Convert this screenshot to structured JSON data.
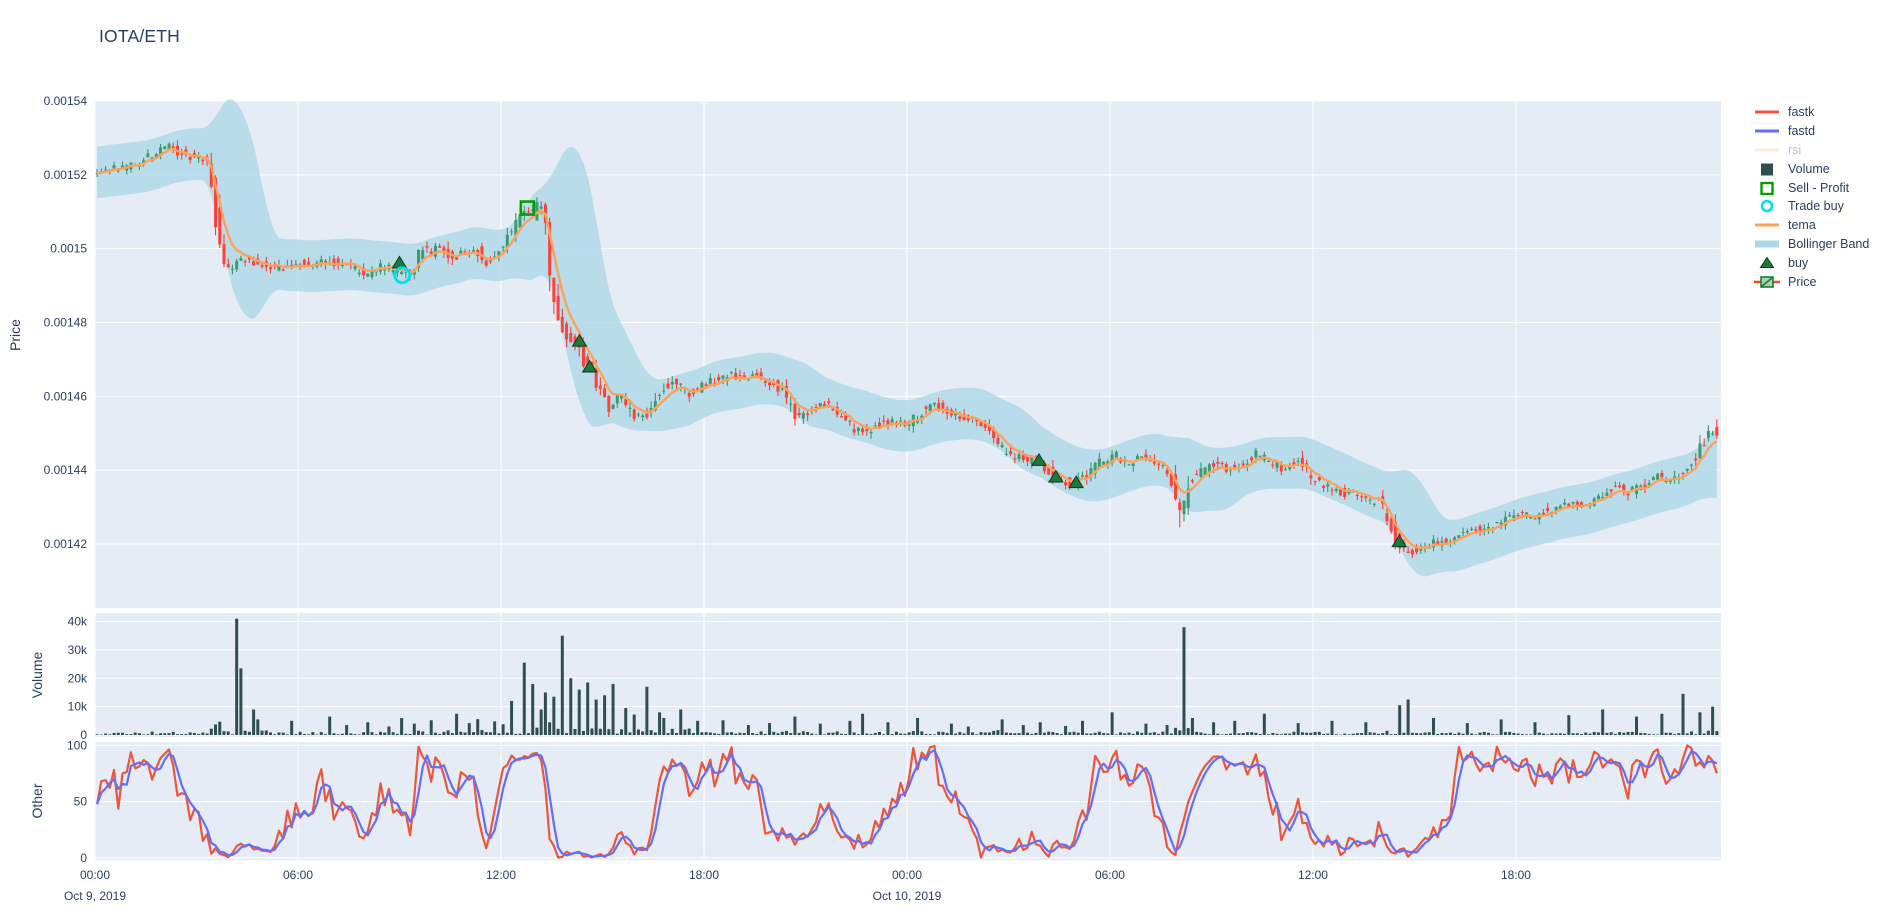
{
  "title": "IOTA/ETH",
  "colors": {
    "paper": "#ffffff",
    "plot_bg": "#e5ecf6",
    "grid": "#ffffff",
    "text": "#2a3f5f",
    "muted_text": "#b9c2d0",
    "candle_up": "#3D9970",
    "candle_down": "#FF4136",
    "bollinger": "#ADD8E6",
    "tema": "#FFA15A",
    "fastk": "#EF553B",
    "fastd": "#636EFA",
    "rsi": "#F6D9A8",
    "volume": "#2F4F4F",
    "buy": "#1B7A3B",
    "buy_edge": "#0A3A1C",
    "sell_profit": "#00A000",
    "trade_buy": "#00E0EC"
  },
  "legend": {
    "items": [
      {
        "label": "fastk",
        "glyph": "line",
        "color": "#EF553B",
        "muted": false
      },
      {
        "label": "fastd",
        "glyph": "line",
        "color": "#636EFA",
        "muted": false
      },
      {
        "label": "rsi",
        "glyph": "line",
        "color": "#F6D9A8",
        "muted": true
      },
      {
        "label": "Volume",
        "glyph": "square",
        "color": "#2F4F4F",
        "muted": false
      },
      {
        "label": "Sell - Profit",
        "glyph": "square-open",
        "color": "#00A000",
        "muted": false
      },
      {
        "label": "Trade buy",
        "glyph": "circle-open",
        "color": "#00E0EC",
        "muted": false
      },
      {
        "label": "tema",
        "glyph": "line",
        "color": "#FFA15A",
        "muted": false
      },
      {
        "label": "Bollinger Band",
        "glyph": "band",
        "color": "#ADD8E6",
        "muted": false
      },
      {
        "label": "buy",
        "glyph": "triangle",
        "color": "#1B7A3B",
        "muted": false
      },
      {
        "label": "Price",
        "glyph": "candle",
        "color": "#3D9970",
        "color2": "#FF4136",
        "muted": false
      }
    ]
  },
  "axes": {
    "x": {
      "ticks": [
        {
          "t": 0,
          "label": "00:00"
        },
        {
          "t": 6,
          "label": "06:00"
        },
        {
          "t": 12,
          "label": "12:00"
        },
        {
          "t": 18,
          "label": "18:00"
        },
        {
          "t": 24,
          "label": "00:00"
        },
        {
          "t": 30,
          "label": "06:00"
        },
        {
          "t": 36,
          "label": "12:00"
        },
        {
          "t": 42,
          "label": "18:00"
        }
      ],
      "dates": [
        {
          "t": 0,
          "label": "Oct 9, 2019"
        },
        {
          "t": 24,
          "label": "Oct 10, 2019"
        }
      ],
      "hours_span": 48.06
    },
    "price": {
      "title": "Price",
      "ticks": [
        {
          "v": 0.00154,
          "label": "0.00154"
        },
        {
          "v": 0.00152,
          "label": "0.00152"
        },
        {
          "v": 0.0015,
          "label": "0.0015"
        },
        {
          "v": 0.00148,
          "label": "0.00148"
        },
        {
          "v": 0.00146,
          "label": "0.00146"
        },
        {
          "v": 0.00144,
          "label": "0.00144"
        },
        {
          "v": 0.00142,
          "label": "0.00142"
        }
      ]
    },
    "volume": {
      "title": "Volume",
      "ticks": [
        {
          "v": 0,
          "label": "0"
        },
        {
          "v": 10000,
          "label": "10k"
        },
        {
          "v": 20000,
          "label": "20k"
        },
        {
          "v": 30000,
          "label": "30k"
        },
        {
          "v": 40000,
          "label": "40k"
        }
      ]
    },
    "other": {
      "title": "Other",
      "ticks": [
        {
          "v": 0,
          "label": "0"
        },
        {
          "v": 50,
          "label": "50"
        },
        {
          "v": 100,
          "label": "100"
        }
      ]
    }
  },
  "chart_data": {
    "type": "candlestick",
    "pair": "IOTA/ETH",
    "start": "Oct 9, 2019 00:00",
    "hours": 48.06,
    "candle_minutes": 7.5,
    "ylim_price": [
      0.0014025,
      0.00154
    ],
    "ylim_volume": [
      0,
      43000
    ],
    "ylim_other": [
      0,
      100
    ],
    "series_visible": [
      "fastk",
      "fastd",
      "Volume",
      "Sell - Profit",
      "Trade buy",
      "tema",
      "Bollinger Band",
      "buy",
      "Price"
    ],
    "series_hidden": [
      "rsi"
    ],
    "indicator_params": {
      "bollinger_window": 14,
      "bollinger_mult": 2.1,
      "bollinger_min_half_width": 7e-06,
      "stoch_window": 14,
      "fastd_smooth": 3,
      "tema_alpha": 0.3
    },
    "seed": 1337,
    "price_path_anchors": [
      [
        0,
        0.001521
      ],
      [
        0.5,
        0.0015215
      ],
      [
        1,
        0.0015222
      ],
      [
        1.5,
        0.0015238
      ],
      [
        1.9,
        0.0015262
      ],
      [
        2.2,
        0.001528
      ],
      [
        2.5,
        0.0015262
      ],
      [
        2.8,
        0.001525
      ],
      [
        3.1,
        0.0015252
      ],
      [
        3.35,
        0.0015245
      ],
      [
        3.55,
        0.001515
      ],
      [
        3.8,
        0.0014965
      ],
      [
        4.1,
        0.0014945
      ],
      [
        4.5,
        0.0014975
      ],
      [
        5,
        0.0014958
      ],
      [
        5.5,
        0.0014948
      ],
      [
        6,
        0.0014962
      ],
      [
        6.5,
        0.001495
      ],
      [
        7,
        0.0014968
      ],
      [
        7.5,
        0.0014952
      ],
      [
        8,
        0.001493
      ],
      [
        8.5,
        0.0014952
      ],
      [
        9,
        0.0014938
      ],
      [
        9.35,
        0.0014928
      ],
      [
        9.7,
        0.0015
      ],
      [
        10,
        0.0014988
      ],
      [
        10.3,
        0.0015012
      ],
      [
        10.6,
        0.0014975
      ],
      [
        11,
        0.0014992
      ],
      [
        11.3,
        0.0015002
      ],
      [
        11.6,
        0.0014962
      ],
      [
        12,
        0.0014988
      ],
      [
        12.3,
        0.0015042
      ],
      [
        12.6,
        0.0015085
      ],
      [
        12.8,
        0.0015112
      ],
      [
        13,
        0.0015092
      ],
      [
        13.2,
        0.001512
      ],
      [
        13.4,
        0.0015048
      ],
      [
        13.55,
        0.0014918
      ],
      [
        13.7,
        0.0014838
      ],
      [
        13.85,
        0.00148
      ],
      [
        14,
        0.0014768
      ],
      [
        14.3,
        0.0014742
      ],
      [
        14.5,
        0.0014695
      ],
      [
        14.7,
        0.0014682
      ],
      [
        15,
        0.0014605
      ],
      [
        15.3,
        0.0014565
      ],
      [
        15.6,
        0.0014602
      ],
      [
        15.9,
        0.0014555
      ],
      [
        16.2,
        0.0014542
      ],
      [
        16.5,
        0.0014565
      ],
      [
        16.8,
        0.0014622
      ],
      [
        17.2,
        0.0014642
      ],
      [
        17.6,
        0.0014605
      ],
      [
        18,
        0.0014632
      ],
      [
        18.4,
        0.0014645
      ],
      [
        18.8,
        0.0014658
      ],
      [
        19.2,
        0.0014652
      ],
      [
        19.6,
        0.0014662
      ],
      [
        20,
        0.0014642
      ],
      [
        20.4,
        0.0014612
      ],
      [
        20.8,
        0.0014535
      ],
      [
        21.2,
        0.0014562
      ],
      [
        21.6,
        0.0014582
      ],
      [
        22,
        0.0014562
      ],
      [
        22.4,
        0.0014515
      ],
      [
        22.8,
        0.0014502
      ],
      [
        23.2,
        0.0014522
      ],
      [
        23.6,
        0.0014532
      ],
      [
        24,
        0.0014522
      ],
      [
        24.4,
        0.0014552
      ],
      [
        24.8,
        0.0014582
      ],
      [
        25.2,
        0.0014562
      ],
      [
        25.6,
        0.0014542
      ],
      [
        26,
        0.0014532
      ],
      [
        26.4,
        0.0014522
      ],
      [
        26.7,
        0.0014472
      ],
      [
        27,
        0.0014442
      ],
      [
        27.4,
        0.0014432
      ],
      [
        27.9,
        0.0014422
      ],
      [
        28.2,
        0.0014402
      ],
      [
        28.45,
        0.0014382
      ],
      [
        28.7,
        0.0014372
      ],
      [
        29,
        0.0014362
      ],
      [
        29.4,
        0.0014392
      ],
      [
        29.8,
        0.0014422
      ],
      [
        30.2,
        0.0014442
      ],
      [
        30.6,
        0.0014422
      ],
      [
        31,
        0.0014442
      ],
      [
        31.4,
        0.0014422
      ],
      [
        31.8,
        0.0014392
      ],
      [
        32.05,
        0.001431
      ],
      [
        32.15,
        0.001424
      ],
      [
        32.3,
        0.001434
      ],
      [
        32.5,
        0.0014382
      ],
      [
        32.8,
        0.0014402
      ],
      [
        33.2,
        0.0014422
      ],
      [
        33.6,
        0.0014402
      ],
      [
        34,
        0.0014422
      ],
      [
        34.4,
        0.0014442
      ],
      [
        34.8,
        0.0014422
      ],
      [
        35.2,
        0.0014402
      ],
      [
        35.6,
        0.0014422
      ],
      [
        36,
        0.0014382
      ],
      [
        36.4,
        0.0014362
      ],
      [
        36.8,
        0.0014342
      ],
      [
        37.2,
        0.0014332
      ],
      [
        37.6,
        0.0014322
      ],
      [
        38,
        0.0014312
      ],
      [
        38.3,
        0.0014262
      ],
      [
        38.55,
        0.0014202
      ],
      [
        38.8,
        0.0014172
      ],
      [
        39.2,
        0.0014192
      ],
      [
        39.6,
        0.0014202
      ],
      [
        40,
        0.0014212
      ],
      [
        40.5,
        0.0014232
      ],
      [
        41,
        0.0014242
      ],
      [
        41.5,
        0.0014252
      ],
      [
        42,
        0.0014282
      ],
      [
        42.5,
        0.0014272
      ],
      [
        43,
        0.0014292
      ],
      [
        43.5,
        0.0014312
      ],
      [
        44,
        0.0014302
      ],
      [
        44.5,
        0.0014322
      ],
      [
        45,
        0.0014362
      ],
      [
        45.4,
        0.0014342
      ],
      [
        45.8,
        0.0014362
      ],
      [
        46.2,
        0.0014382
      ],
      [
        46.6,
        0.0014372
      ],
      [
        47,
        0.0014402
      ],
      [
        47.4,
        0.0014442
      ],
      [
        47.7,
        0.0014502
      ],
      [
        47.95,
        0.0014512
      ],
      [
        48.06,
        0.0014455
      ]
    ],
    "volume_spikes": [
      [
        4.07,
        41000
      ],
      [
        4.28,
        23500
      ],
      [
        4.6,
        9000
      ],
      [
        4.8,
        5500
      ],
      [
        5.7,
        5000
      ],
      [
        6.9,
        6500
      ],
      [
        7.4,
        3500
      ],
      [
        8,
        4500
      ],
      [
        8.6,
        3000
      ],
      [
        9,
        6000
      ],
      [
        9.4,
        4000
      ],
      [
        9.9,
        5200
      ],
      [
        10.6,
        7500
      ],
      [
        11,
        4200
      ],
      [
        11.3,
        5600
      ],
      [
        11.7,
        4800
      ],
      [
        12,
        3800
      ],
      [
        12.25,
        12000
      ],
      [
        12.6,
        25500
      ],
      [
        12.9,
        18000
      ],
      [
        13.1,
        9000
      ],
      [
        13.3,
        15000
      ],
      [
        13.55,
        13500
      ],
      [
        13.75,
        35000
      ],
      [
        13.95,
        20000
      ],
      [
        14.2,
        16000
      ],
      [
        14.45,
        18500
      ],
      [
        14.7,
        12500
      ],
      [
        15,
        14000
      ],
      [
        15.3,
        18000
      ],
      [
        15.6,
        9500
      ],
      [
        15.9,
        7200
      ],
      [
        16.3,
        17000
      ],
      [
        16.6,
        8000
      ],
      [
        16.8,
        6000
      ],
      [
        17.3,
        9000
      ],
      [
        17.8,
        5000
      ],
      [
        18.5,
        5200
      ],
      [
        19.2,
        3500
      ],
      [
        19.9,
        4200
      ],
      [
        20.6,
        6500
      ],
      [
        21.4,
        4000
      ],
      [
        22.2,
        5000
      ],
      [
        22.6,
        7500
      ],
      [
        23.4,
        4500
      ],
      [
        24.3,
        6000
      ],
      [
        25.2,
        4000
      ],
      [
        25.8,
        3000
      ],
      [
        26.7,
        5500
      ],
      [
        27.4,
        3500
      ],
      [
        27.9,
        4500
      ],
      [
        28.6,
        3200
      ],
      [
        29.1,
        5000
      ],
      [
        30,
        8000
      ],
      [
        31,
        4000
      ],
      [
        31.6,
        3500
      ],
      [
        32.1,
        38000
      ],
      [
        32.4,
        6000
      ],
      [
        33,
        4500
      ],
      [
        33.6,
        5000
      ],
      [
        34.5,
        7500
      ],
      [
        35.5,
        4200
      ],
      [
        36.5,
        5000
      ],
      [
        37.5,
        4500
      ],
      [
        38.5,
        10500
      ],
      [
        38.8,
        12500
      ],
      [
        39.5,
        6000
      ],
      [
        40.5,
        4200
      ],
      [
        41.5,
        5500
      ],
      [
        42.5,
        4500
      ],
      [
        43.5,
        7000
      ],
      [
        44.5,
        9000
      ],
      [
        45.5,
        6500
      ],
      [
        46.3,
        7500
      ],
      [
        46.9,
        14500
      ],
      [
        47.4,
        8000
      ],
      [
        47.8,
        10000
      ]
    ],
    "markers": {
      "buy": [
        [
          9.0,
          0.001496
        ],
        [
          14.32,
          0.0014748
        ],
        [
          14.62,
          0.0014678
        ],
        [
          27.9,
          0.0014425
        ],
        [
          28.4,
          0.001438
        ],
        [
          29.0,
          0.0014365
        ],
        [
          38.55,
          0.0014205
        ]
      ],
      "sell_profit": [
        [
          12.78,
          0.001511
        ]
      ],
      "trade_buy": [
        [
          9.08,
          0.0014928
        ]
      ]
    }
  }
}
